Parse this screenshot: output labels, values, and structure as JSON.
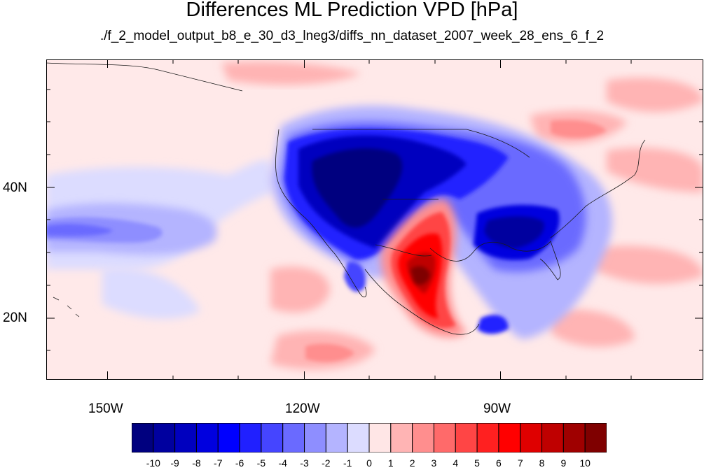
{
  "title": "Differences ML Prediction VPD [hPa]",
  "subtitle": "./f_2_model_output_b8_e_30_d3_lneg3/diffs_nn_dataset_2007_week_28_ens_6_f_2",
  "map": {
    "projection": "cylindrical equidistant",
    "lon_range": [
      -160,
      -62
    ],
    "lat_range": [
      11,
      60
    ],
    "lon_ticks": [
      "150W",
      "120W",
      "90W"
    ],
    "lat_ticks": [
      "40N",
      "20N"
    ]
  },
  "colorbar": {
    "labels": [
      "-10",
      "-9",
      "-8",
      "-7",
      "-6",
      "-5",
      "-4",
      "-3",
      "-2",
      "-1",
      "0",
      "1",
      "2",
      "3",
      "4",
      "5",
      "6",
      "7",
      "8",
      "9",
      "10"
    ],
    "colors": [
      "#00007f",
      "#00009f",
      "#0000bf",
      "#0000df",
      "#0000ff",
      "#2020ff",
      "#4545ff",
      "#6a6aff",
      "#8e8eff",
      "#b4b4ff",
      "#dcdcff",
      "#ffe6e6",
      "#ffb4b4",
      "#ff8e8e",
      "#ff6a6a",
      "#ff4545",
      "#ff2020",
      "#ff0000",
      "#df0000",
      "#bf0000",
      "#9f0000",
      "#7f0000"
    ]
  }
}
